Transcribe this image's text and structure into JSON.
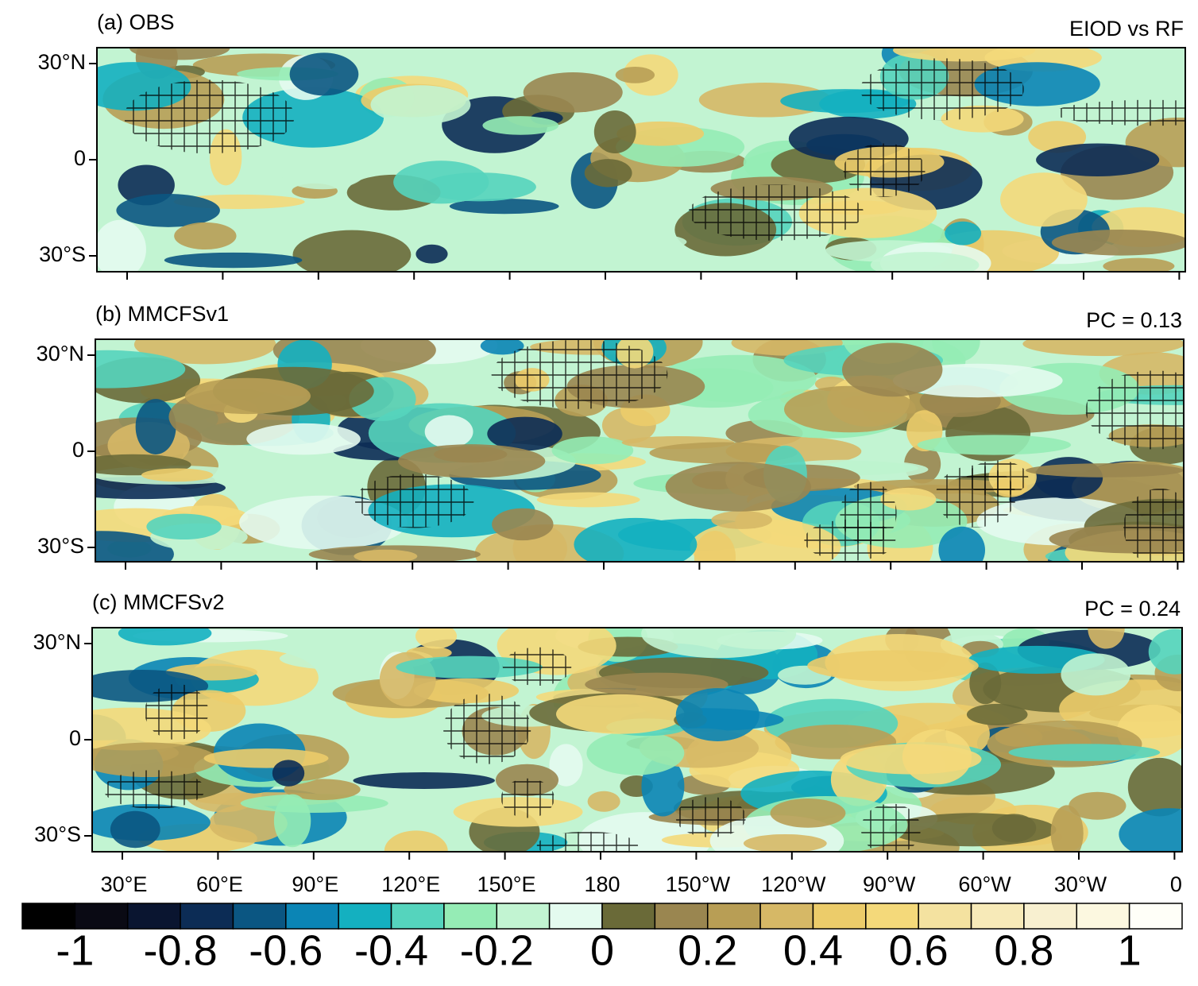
{
  "panels": [
    {
      "label": "(a) OBS",
      "note": "EIOD vs RF"
    },
    {
      "label": "(b) MMCFSv1",
      "note": "PC = 0.13"
    },
    {
      "label": "(c) MMCFSv2",
      "note": "PC = 0.24"
    }
  ],
  "lat_ticks": [
    "30°N",
    "0",
    "30°S"
  ],
  "lon_ticks": [
    "30°E",
    "60°E",
    "90°E",
    "120°E",
    "150°E",
    "180",
    "150°W",
    "120°W",
    "90°W",
    "60°W",
    "30°W",
    "0"
  ],
  "colorbar": {
    "colors": [
      "#000000",
      "#0a0a14",
      "#0a1530",
      "#0c2c55",
      "#0b5682",
      "#0b85b5",
      "#14b0c0",
      "#55d4bd",
      "#95ecb5",
      "#c2f4d2",
      "#e4fbef",
      "#6a6a38",
      "#9a8650",
      "#b89e55",
      "#d6b866",
      "#eccc6a",
      "#f4d97a",
      "#f4e2a0",
      "#f7eab8",
      "#f8f0d0",
      "#fcf8e0",
      "#fffff8"
    ],
    "labels": [
      "-1",
      "-0.8",
      "-0.6",
      "-0.4",
      "-0.2",
      "0",
      "0.2",
      "0.4",
      "0.6",
      "0.8",
      "1"
    ]
  }
}
